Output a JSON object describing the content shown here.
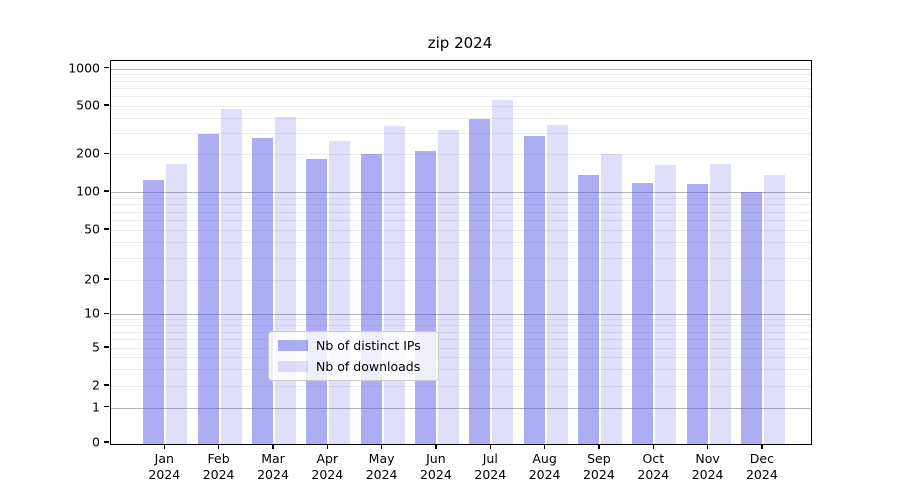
{
  "figure": {
    "title": "zip 2024"
  },
  "chart_data": {
    "type": "bar",
    "title": "zip 2024",
    "categories": [
      "Jan 2024",
      "Feb 2024",
      "Mar 2024",
      "Apr 2024",
      "May 2024",
      "Jun 2024",
      "Jul 2024",
      "Aug 2024",
      "Sep 2024",
      "Oct 2024",
      "Nov 2024",
      "Dec 2024"
    ],
    "months": [
      "Jan",
      "Feb",
      "Mar",
      "Apr",
      "May",
      "Jun",
      "Jul",
      "Aug",
      "Sep",
      "Oct",
      "Nov",
      "Dec"
    ],
    "year": "2024",
    "series": [
      {
        "name": "Nb of distinct IPs",
        "color": "rgba(80,80,230,0.47)",
        "values": [
          125,
          295,
          275,
          183,
          200,
          215,
          390,
          285,
          136,
          119,
          115,
          100
        ]
      },
      {
        "name": "Nb of downloads",
        "color": "rgba(80,80,230,0.18)",
        "values": [
          168,
          470,
          410,
          258,
          343,
          320,
          560,
          347,
          200,
          165,
          168,
          138
        ]
      }
    ],
    "xlabel": "",
    "ylabel": "",
    "yscale": "symlog",
    "yticks": [
      0,
      1,
      2,
      5,
      10,
      20,
      50,
      100,
      200,
      500,
      1000
    ],
    "ylim": [
      0,
      1100
    ],
    "grid": "both",
    "legend_position": "lower center",
    "legend_entries": [
      "Nb of distinct IPs",
      "Nb of downloads"
    ]
  }
}
